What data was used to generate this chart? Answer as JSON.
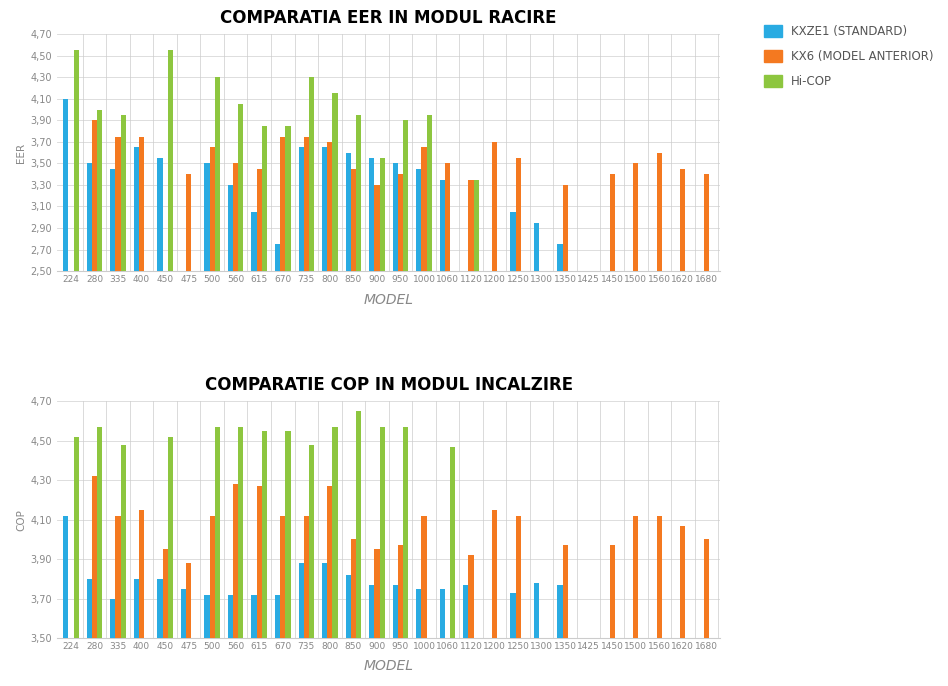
{
  "title1": "COMPARATIA EER IN MODUL RACIRE",
  "title2": "COMPARATIE COP IN MODUL INCALZIRE",
  "xlabel": "MODEL",
  "ylabel1": "EER",
  "ylabel2": "COP",
  "categories": [
    "224",
    "280",
    "335",
    "400",
    "450",
    "475",
    "500",
    "560",
    "615",
    "670",
    "735",
    "800",
    "850",
    "900",
    "950",
    "1000",
    "1060",
    "1120",
    "1200",
    "1250",
    "1300",
    "1350",
    "1425",
    "1450",
    "1500",
    "1560",
    "1620",
    "1680"
  ],
  "legend": [
    "KXZE1 (STANDARD)",
    "KX6 (MODEL ANTERIOR)",
    "Hi-COP"
  ],
  "colors": [
    "#29abe2",
    "#f47920",
    "#8dc63f"
  ],
  "eer_kxze1": [
    4.1,
    3.5,
    3.45,
    3.65,
    3.55,
    null,
    3.5,
    3.3,
    3.05,
    2.75,
    3.65,
    3.65,
    3.6,
    3.55,
    3.5,
    3.45,
    3.35,
    null,
    null,
    3.05,
    2.95,
    2.75,
    null,
    null,
    null,
    null,
    null,
    null
  ],
  "eer_kx6": [
    null,
    3.9,
    3.75,
    3.75,
    null,
    3.4,
    3.65,
    3.5,
    3.45,
    3.75,
    3.75,
    3.7,
    3.45,
    3.3,
    3.4,
    3.65,
    3.5,
    3.35,
    3.7,
    3.55,
    null,
    3.3,
    null,
    3.4,
    3.5,
    3.6,
    3.45,
    3.4
  ],
  "eer_hicop": [
    4.55,
    4.0,
    3.95,
    null,
    4.55,
    null,
    4.3,
    4.05,
    3.85,
    3.85,
    4.3,
    4.15,
    3.95,
    3.55,
    3.9,
    3.95,
    null,
    3.35,
    null,
    null,
    null,
    null,
    null,
    null,
    null,
    null,
    null,
    null
  ],
  "cop_kxze1": [
    4.12,
    3.8,
    3.7,
    3.8,
    3.8,
    3.75,
    3.72,
    3.72,
    3.72,
    3.72,
    3.88,
    3.88,
    3.82,
    3.77,
    3.77,
    3.75,
    3.75,
    3.77,
    null,
    3.73,
    3.78,
    3.77,
    null,
    null,
    null,
    null,
    null,
    null
  ],
  "cop_kx6": [
    null,
    4.32,
    4.12,
    4.15,
    3.95,
    3.88,
    4.12,
    4.28,
    4.27,
    4.12,
    4.12,
    4.27,
    4.0,
    3.95,
    3.97,
    4.12,
    null,
    3.92,
    4.15,
    4.12,
    null,
    3.97,
    null,
    3.97,
    4.12,
    4.12,
    4.07,
    4.0
  ],
  "cop_hicop": [
    4.52,
    4.57,
    4.48,
    null,
    4.52,
    null,
    4.57,
    4.57,
    4.55,
    4.55,
    4.48,
    4.57,
    4.65,
    4.57,
    4.57,
    null,
    4.47,
    null,
    null,
    null,
    null,
    null,
    null,
    null,
    null,
    null,
    null,
    null
  ],
  "ylim1": [
    2.5,
    4.7
  ],
  "ylim2": [
    3.5,
    4.7
  ],
  "yticks1": [
    2.5,
    2.7,
    2.9,
    3.1,
    3.3,
    3.5,
    3.7,
    3.9,
    4.1,
    4.3,
    4.5,
    4.7
  ],
  "yticks2": [
    3.5,
    3.7,
    3.9,
    4.1,
    4.3,
    4.5,
    4.7
  ],
  "background_color": "#ffffff",
  "grid_color": "#d0d0d0"
}
